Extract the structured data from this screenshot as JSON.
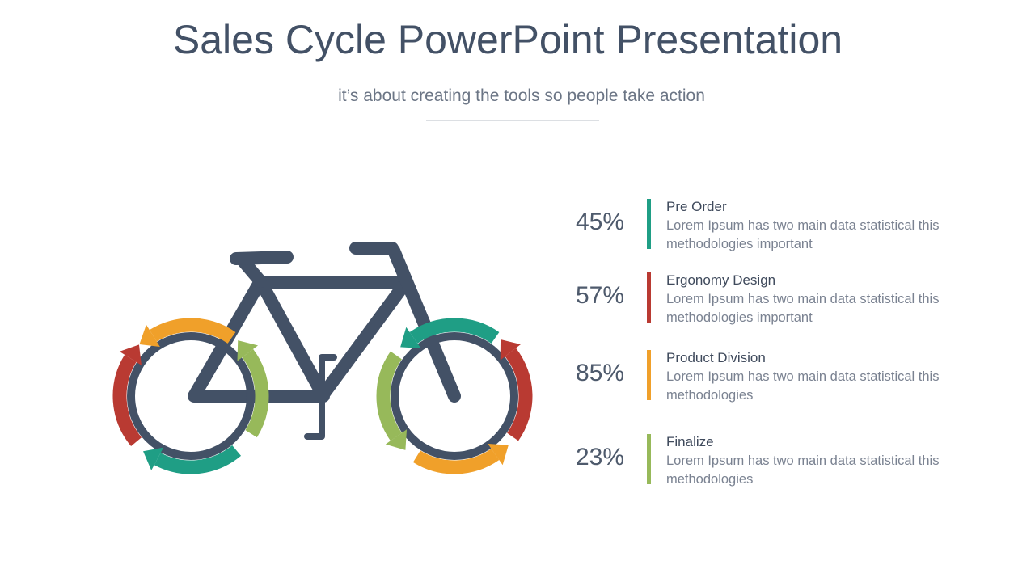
{
  "header": {
    "title": "Sales Cycle PowerPoint Presentation",
    "subtitle": "it’s about creating the tools so people take action"
  },
  "items": [
    {
      "percent": "45%",
      "title": "Pre Order",
      "text": "Lorem Ipsum has two main data statistical this methodologies important"
    },
    {
      "percent": "57%",
      "title": "Ergonomy Design",
      "text": "Lorem Ipsum has two main data statistical this methodologies important"
    },
    {
      "percent": "85%",
      "title": "Product Division",
      "text": "Lorem Ipsum has two main data statistical this methodologies"
    },
    {
      "percent": "23%",
      "title": "Finalize",
      "text": "Lorem Ipsum has two main data statistical this methodologies"
    }
  ]
}
